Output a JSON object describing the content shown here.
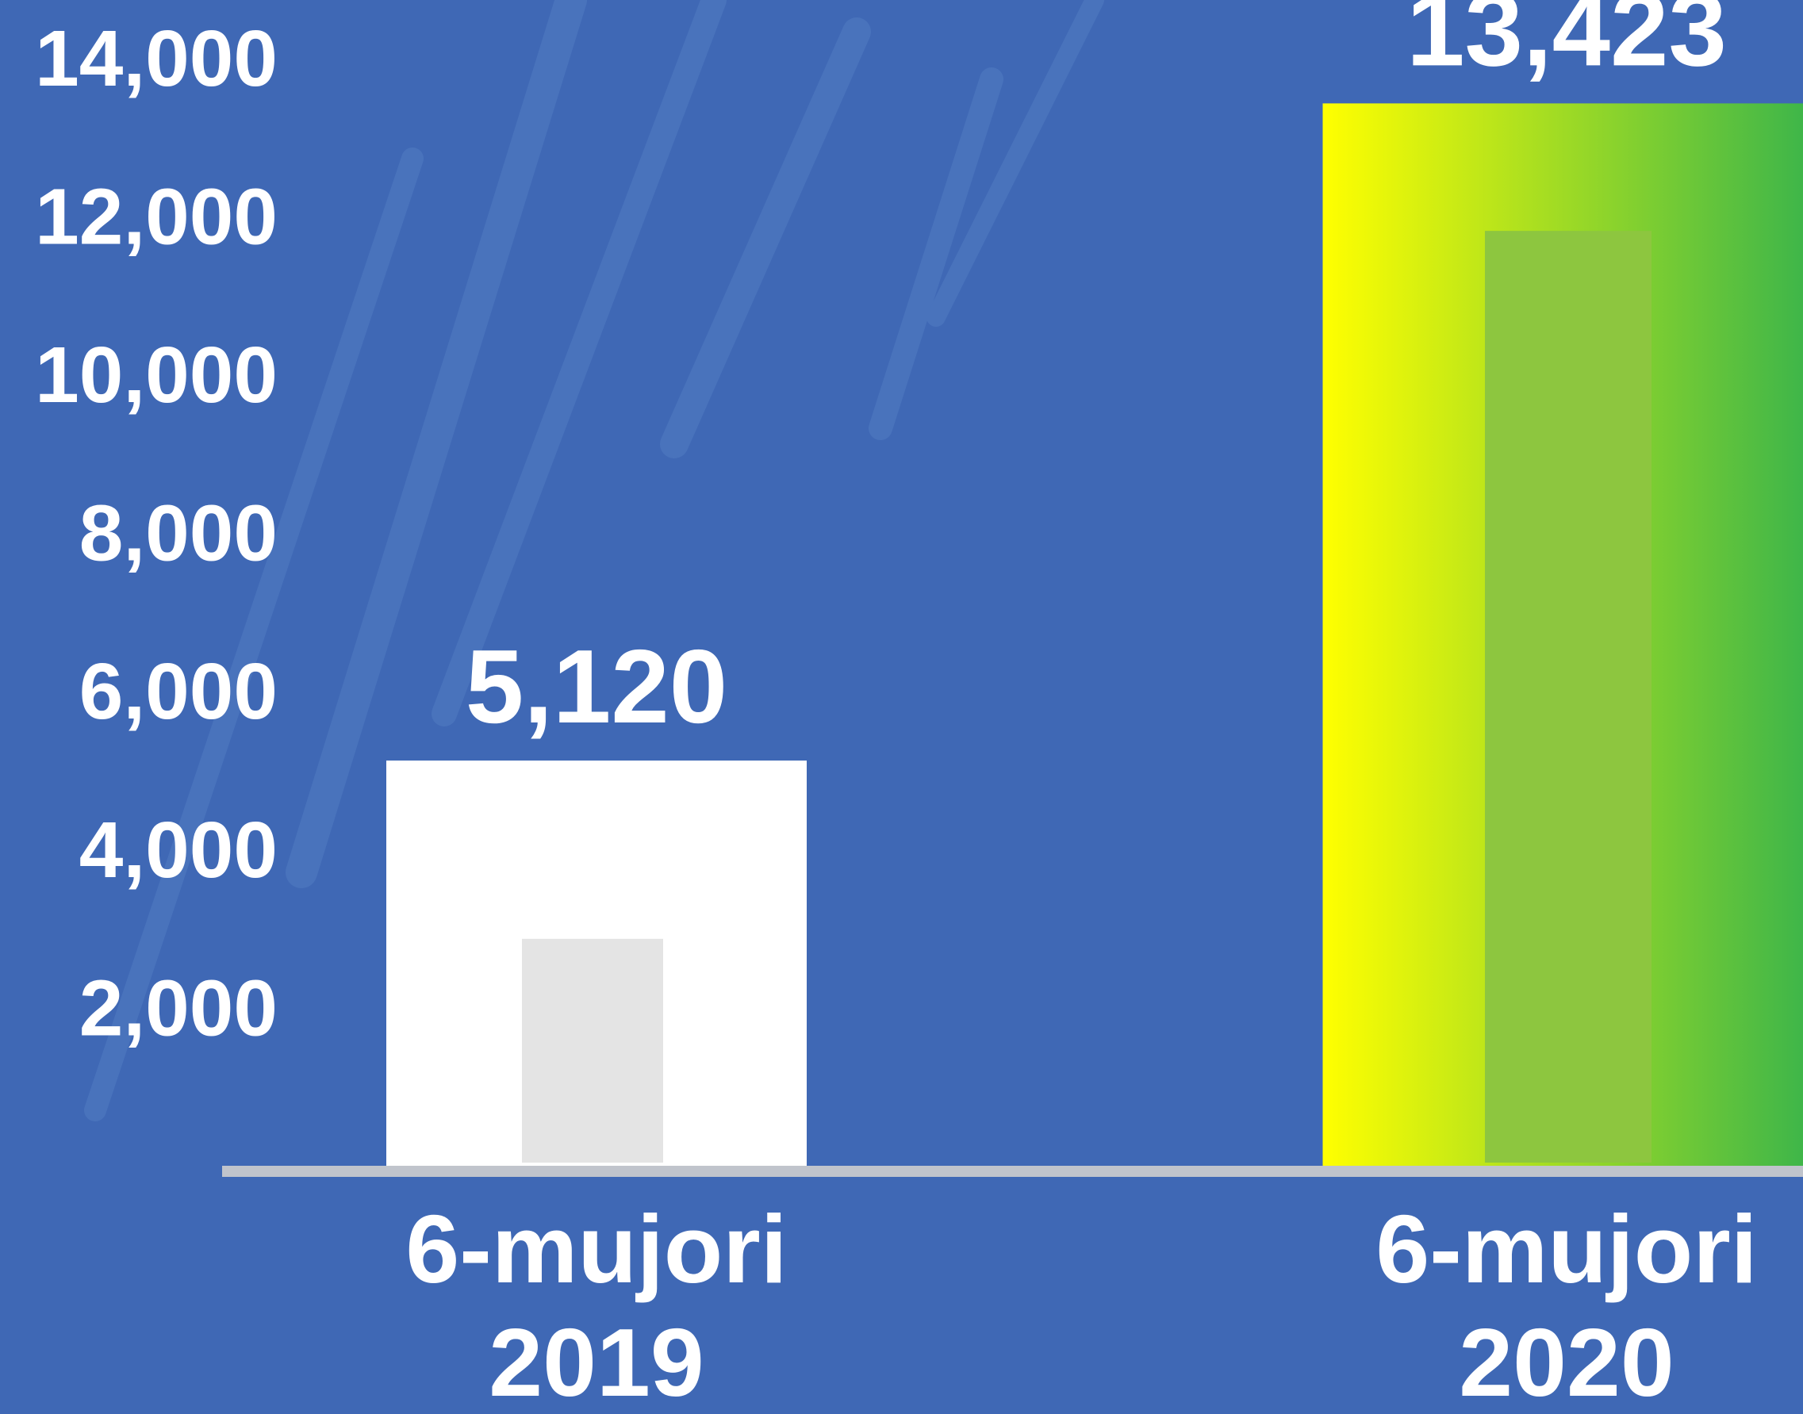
{
  "chart_data": {
    "type": "bar",
    "title": "",
    "xlabel": "",
    "ylabel": "",
    "ylim": [
      0,
      14000
    ],
    "yticks": [
      2000,
      4000,
      6000,
      8000,
      10000,
      12000,
      14000
    ],
    "ytick_labels": [
      "2,000",
      "4,000",
      "6,000",
      "8,000",
      "10,000",
      "12,000",
      "14,000"
    ],
    "grid": false,
    "legend": "none",
    "categories": [
      {
        "line1": "6-mujori",
        "line2": "2019"
      },
      {
        "line1": "6-mujori",
        "line2": "2020"
      }
    ],
    "values": [
      5120,
      13423
    ],
    "value_labels": [
      "5,120",
      "13,423"
    ],
    "bar_styles": [
      "white",
      "yellow-green-gradient"
    ]
  },
  "colors": {
    "background": "#3f68b5",
    "baseline": "#c0c4cc",
    "text": "#ffffff",
    "bar_white": "#ffffff",
    "bar_white_inner": "#e4e4e4",
    "gradient_start": "#ffff00",
    "gradient_end": "#3cb54a",
    "bar_green_inner": "#8dc63f"
  }
}
